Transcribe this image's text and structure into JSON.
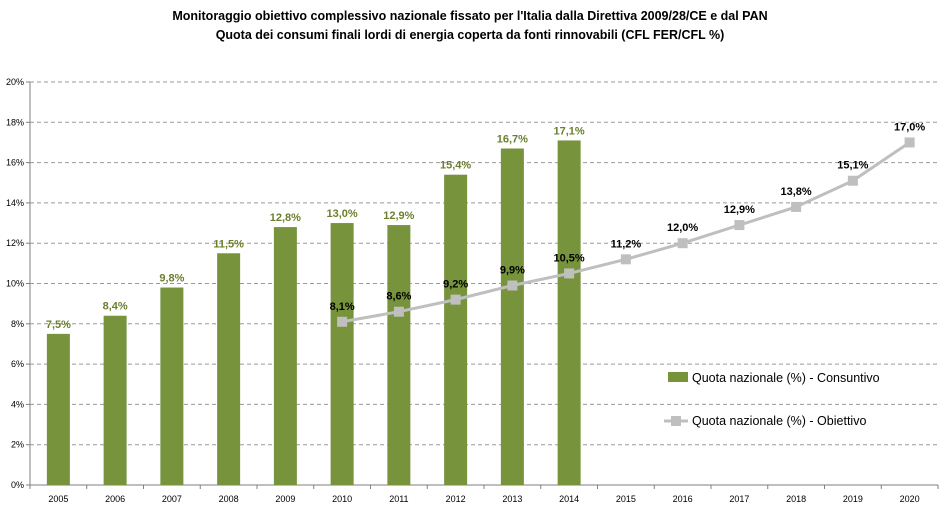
{
  "chart_data": {
    "type": "bar",
    "title": "Monitoraggio obiettivo complessivo nazionale fissato per l'Italia dalla Direttiva 2009/28/CE  e dal PAN",
    "subtitle": "Quota dei consumi finali lordi di energia coperta da fonti rinnovabili (CFL FER/CFL %)",
    "xlabel": "",
    "ylabel": "",
    "categories": [
      "2005",
      "2006",
      "2007",
      "2008",
      "2009",
      "2010",
      "2011",
      "2012",
      "2013",
      "2014",
      "2015",
      "2016",
      "2017",
      "2018",
      "2019",
      "2020"
    ],
    "ylim": [
      0,
      20
    ],
    "y_ticks": [
      "0%",
      "2%",
      "4%",
      "6%",
      "8%",
      "10%",
      "12%",
      "14%",
      "16%",
      "18%",
      "20%"
    ],
    "y_tick_values": [
      0,
      2,
      4,
      6,
      8,
      10,
      12,
      14,
      16,
      18,
      20
    ],
    "grid": true,
    "legend_position": "right",
    "series": [
      {
        "name": "Quota nazionale (%) - Consuntivo",
        "kind": "bar",
        "color": "#77933c",
        "label_color": "#6b7f2e",
        "values": [
          7.5,
          8.4,
          9.8,
          11.5,
          12.8,
          13.0,
          12.9,
          15.4,
          16.7,
          17.1,
          null,
          null,
          null,
          null,
          null,
          null
        ],
        "labels": [
          "7,5%",
          "8,4%",
          "9,8%",
          "11,5%",
          "12,8%",
          "13,0%",
          "12,9%",
          "15,4%",
          "16,7%",
          "17,1%",
          "",
          "",
          "",
          "",
          "",
          ""
        ]
      },
      {
        "name": "Quota nazionale (%) - Obiettivo",
        "kind": "line",
        "color": "#bfbfbf",
        "marker": "square",
        "values": [
          null,
          null,
          null,
          null,
          null,
          8.1,
          8.6,
          9.2,
          9.9,
          10.5,
          11.2,
          12.0,
          12.9,
          13.8,
          15.1,
          17.0
        ],
        "labels": [
          "",
          "",
          "",
          "",
          "",
          "8,1%",
          "8,6%",
          "9,2%",
          "9,9%",
          "10,5%",
          "11,2%",
          "12,0%",
          "12,9%",
          "13,8%",
          "15,1%",
          "17,0%"
        ]
      }
    ]
  }
}
